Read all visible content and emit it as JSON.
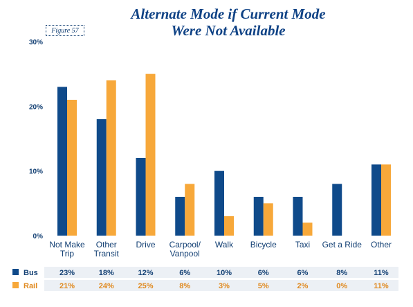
{
  "title_line1": "Alternate Mode if Current Mode",
  "title_line2": "Were Not Available",
  "figure_label": "Figure 57",
  "colors": {
    "bus": "#0f4a8a",
    "rail": "#f7a83a",
    "text": "#123f73",
    "rail_text": "#e08a20",
    "table_bg": "#ecf0f5"
  },
  "chart_data": {
    "type": "bar",
    "title": "Alternate Mode if Current Mode Were Not Available",
    "categories": [
      [
        "Not Make",
        "Trip"
      ],
      [
        "Other",
        "Transit"
      ],
      [
        "Drive"
      ],
      [
        "Carpool/",
        "Vanpool"
      ],
      [
        "Walk"
      ],
      [
        "Bicycle"
      ],
      [
        "Taxi"
      ],
      [
        "Get a Ride"
      ],
      [
        "Other"
      ]
    ],
    "series": [
      {
        "name": "Bus",
        "values": [
          23,
          18,
          12,
          6,
          10,
          6,
          6,
          8,
          11
        ],
        "labels": [
          "23%",
          "18%",
          "12%",
          "6%",
          "10%",
          "6%",
          "6%",
          "8%",
          "11%"
        ]
      },
      {
        "name": "Rail",
        "values": [
          21,
          24,
          25,
          8,
          3,
          5,
          2,
          0,
          11
        ],
        "labels": [
          "21%",
          "24%",
          "25%",
          "8%",
          "3%",
          "5%",
          "2%",
          "0%",
          "11%"
        ]
      }
    ],
    "yticks": [
      "0%",
      "10%",
      "20%",
      "30%"
    ],
    "ylim": [
      0,
      30
    ],
    "grid": false,
    "legend": "table-below"
  }
}
